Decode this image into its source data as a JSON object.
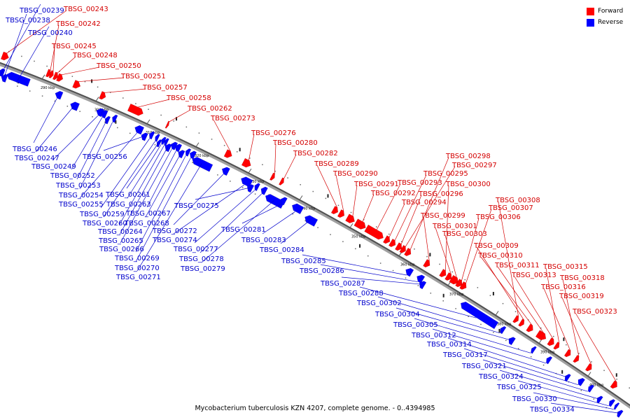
{
  "caption": "Mycobacterium tuberculosis KZN 4207, complete genome. - 0..4394985",
  "legend": {
    "forward_label": "Forward",
    "reverse_label": "Reverse",
    "forward_color": "#ff0000",
    "reverse_color": "#0000ff"
  },
  "ticks": [
    "290 kbp",
    "300 kbp",
    "310 kbp",
    "320 kbp",
    "330 kbp",
    "340 kbp",
    "350 kbp",
    "360 kbp",
    "370 kbp",
    "380 kbp",
    "390 kbp",
    "400 kbp"
  ],
  "forward_genes": [
    "TBSG_00243",
    "TBSG_00242",
    "TBSG_00245",
    "TBSG_00248",
    "TBSG_00250",
    "TBSG_00251",
    "TBSG_00257",
    "TBSG_00258",
    "TBSG_00262",
    "TBSG_00273",
    "TBSG_00276",
    "TBSG_00280",
    "TBSG_00282",
    "TBSG_00289",
    "TBSG_00290",
    "TBSG_00291",
    "TBSG_00292",
    "TBSG_00293",
    "TBSG_00294",
    "TBSG_00295",
    "TBSG_00296",
    "TBSG_00297",
    "TBSG_00298",
    "TBSG_00299",
    "TBSG_00300",
    "TBSG_00301",
    "TBSG_00303",
    "TBSG_00306",
    "TBSG_00307",
    "TBSG_00308",
    "TBSG_00309",
    "TBSG_00310",
    "TBSG_00311",
    "TBSG_00313",
    "TBSG_00315",
    "TBSG_00316",
    "TBSG_00318",
    "TBSG_00319",
    "TBSG_00323"
  ],
  "reverse_genes": [
    "TBSG_00239",
    "TBSG_00238",
    "TBSG_00240",
    "TBSG_00246",
    "TBSG_00247",
    "TBSG_00249",
    "TBSG_00252",
    "TBSG_00253",
    "TBSG_00254",
    "TBSG_00255",
    "TBSG_00256",
    "TBSG_00259",
    "TBSG_00260",
    "TBSG_00261",
    "TBSG_00263",
    "TBSG_00264",
    "TBSG_00265",
    "TBSG_00266",
    "TBSG_00267",
    "TBSG_00268",
    "TBSG_00269",
    "TBSG_00270",
    "TBSG_00271",
    "TBSG_00272",
    "TBSG_00274",
    "TBSG_00275",
    "TBSG_00277",
    "TBSG_00278",
    "TBSG_00279",
    "TBSG_00281",
    "TBSG_00283",
    "TBSG_00284",
    "TBSG_00285",
    "TBSG_00286",
    "TBSG_00287",
    "TBSG_00288",
    "TBSG_00302",
    "TBSG_00304",
    "TBSG_00305",
    "TBSG_00312",
    "TBSG_00314",
    "TBSG_00317",
    "TBSG_00321",
    "TBSG_00324",
    "TBSG_00325",
    "TBSG_00330",
    "TBSG_00334"
  ]
}
